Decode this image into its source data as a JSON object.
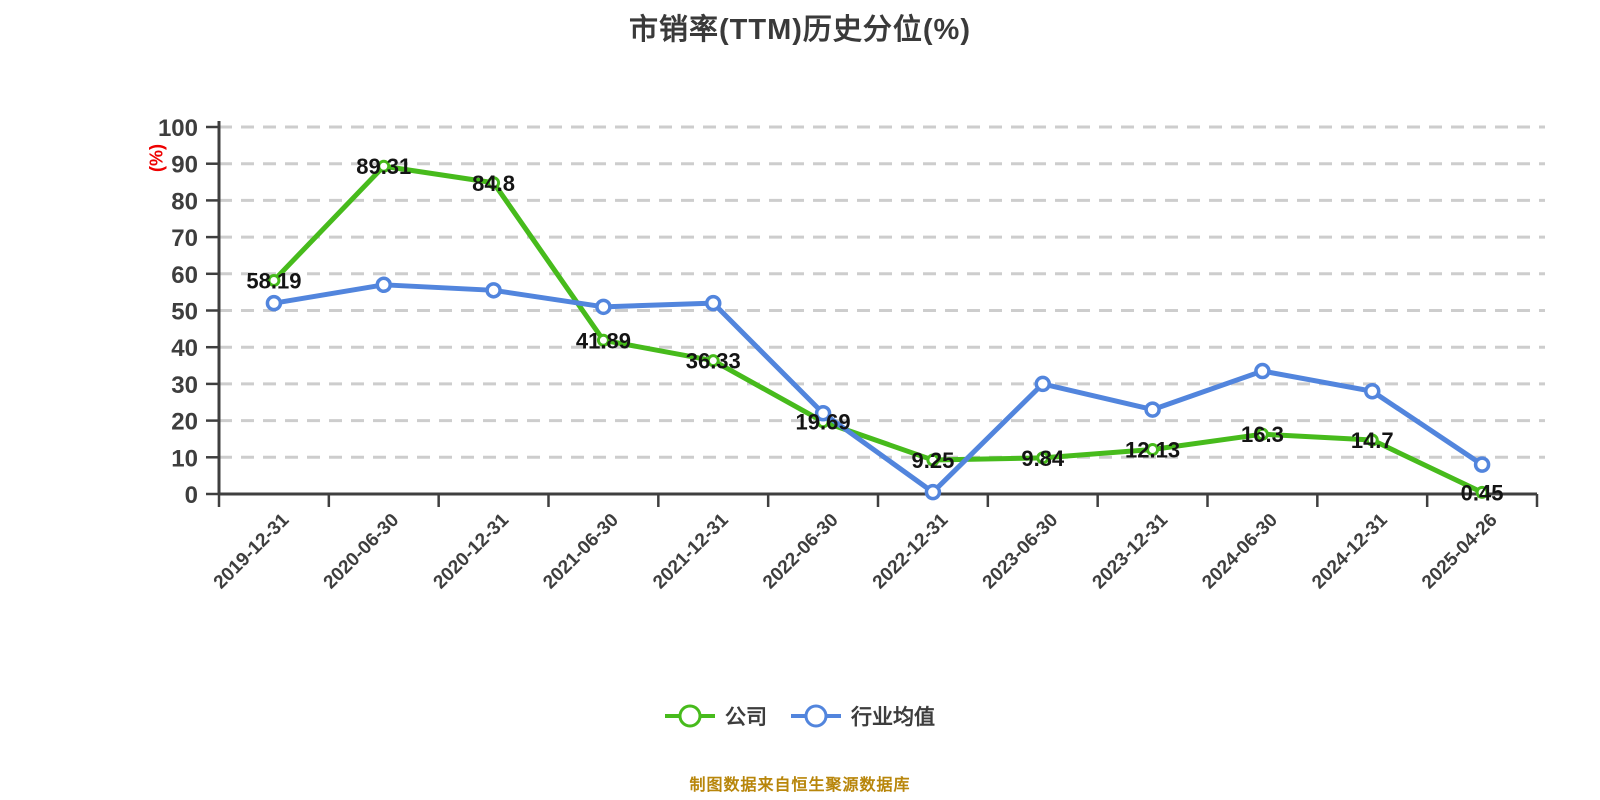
{
  "title": "市销率(TTM)历史分位(%)",
  "y_axis": {
    "name": "(%)",
    "min": 0,
    "max": 100,
    "tick_step": 10
  },
  "legend": {
    "items": [
      {
        "label": "公司",
        "color": "#47bb1c"
      },
      {
        "label": "行业均值",
        "color": "#5285dd"
      }
    ]
  },
  "source_note": "制图数据来自恒生聚源数据库",
  "colors": {
    "company_line": "#47bb1c",
    "industry_line": "#5285dd",
    "grid_dash": "#cdcdcd",
    "axis": "#3f3f3f",
    "tick_text": "#3e3e3e",
    "data_label": "#141414",
    "title_text": "#3a3a3a",
    "unit_label_red": "#ee0000",
    "source_text": "#b8860b",
    "marker_fill": "#ffffff"
  },
  "chart_data": {
    "type": "line",
    "title": "市销率(TTM)历史分位(%)",
    "xlabel": "",
    "ylabel": "(%)",
    "ylim": [
      0,
      100
    ],
    "ytick_step": 10,
    "grid": "horizontal-dashed",
    "legend_position": "bottom",
    "categories": [
      "2019-12-31",
      "2020-06-30",
      "2020-12-31",
      "2021-06-30",
      "2021-12-31",
      "2022-06-30",
      "2022-12-31",
      "2023-06-30",
      "2023-12-31",
      "2024-06-30",
      "2024-12-31",
      "2025-04-26"
    ],
    "series": [
      {
        "name": "公司",
        "color": "#47bb1c",
        "values": [
          58.19,
          89.31,
          84.8,
          41.89,
          36.33,
          19.69,
          9.25,
          9.84,
          12.13,
          16.3,
          14.7,
          0.45
        ],
        "point_labels": [
          "58.19",
          "89.31",
          "84.8",
          "41.89",
          "36.33",
          "19.69",
          "9.25",
          "9.84",
          "12.13",
          "16.3",
          "14.7",
          "0.45"
        ]
      },
      {
        "name": "行业均值",
        "color": "#5285dd",
        "values": [
          52,
          57,
          55.5,
          51,
          52,
          22,
          0.5,
          30,
          23,
          33.5,
          28,
          8
        ],
        "point_labels": null
      }
    ]
  }
}
